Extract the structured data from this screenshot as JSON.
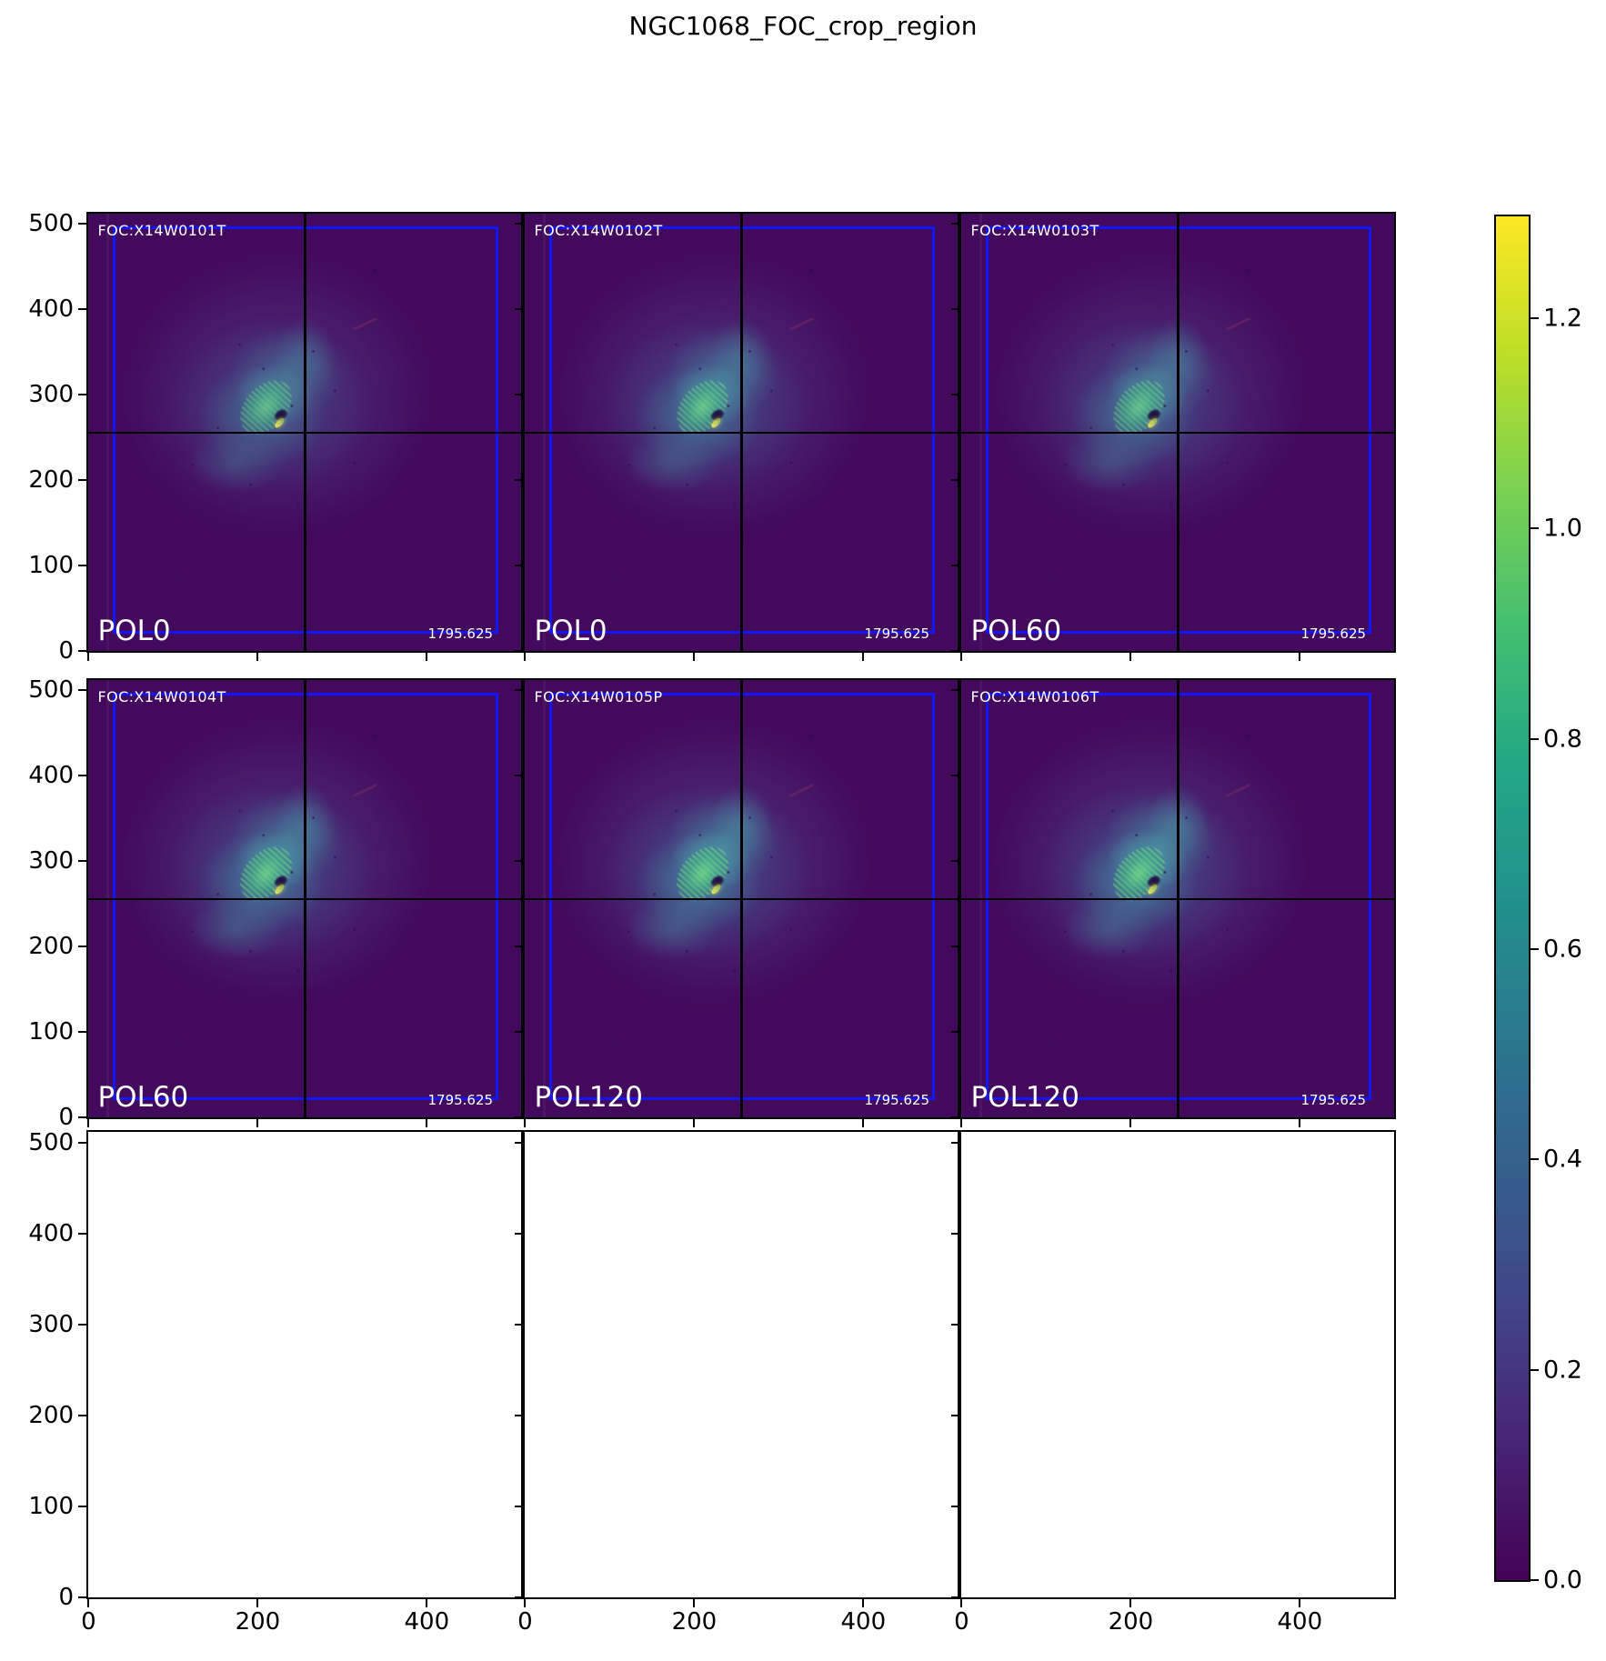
{
  "title": "NGC1068_FOC_crop_region",
  "axes": {
    "data_min": -0.5,
    "data_max": 511.5,
    "x_ticks": [
      0,
      200,
      400
    ],
    "y_ticks": [
      0,
      100,
      200,
      300,
      400,
      500
    ]
  },
  "panels": [
    {
      "foc": "FOC:X14W0101T",
      "pol": "POL0",
      "exposure": "1795.625",
      "empty": false
    },
    {
      "foc": "FOC:X14W0102T",
      "pol": "POL0",
      "exposure": "1795.625",
      "empty": false
    },
    {
      "foc": "FOC:X14W0103T",
      "pol": "POL60",
      "exposure": "1795.625",
      "empty": false
    },
    {
      "foc": "FOC:X14W0104T",
      "pol": "POL60",
      "exposure": "1795.625",
      "empty": false
    },
    {
      "foc": "FOC:X14W0105P",
      "pol": "POL120",
      "exposure": "1795.625",
      "empty": false
    },
    {
      "foc": "FOC:X14W0106T",
      "pol": "POL120",
      "exposure": "1795.625",
      "empty": false
    },
    {
      "empty": true
    },
    {
      "empty": true
    },
    {
      "empty": true
    }
  ],
  "colorbar": {
    "vmin": 0.0,
    "vmax": 1.297,
    "ticks": [
      "0.0",
      "0.2",
      "0.4",
      "0.6",
      "0.8",
      "1.0",
      "1.2"
    ],
    "tick_values": [
      0.0,
      0.2,
      0.4,
      0.6,
      0.8,
      1.0,
      1.2
    ],
    "gradient": [
      "#440154",
      "#482475",
      "#414487",
      "#355f8d",
      "#2a788e",
      "#21918c",
      "#22a884",
      "#44bf70",
      "#7ad151",
      "#bddf26",
      "#fde725"
    ]
  },
  "colors": {
    "image_background": "#43095c",
    "crop_box_blue": "#1316fb",
    "crosshair": "#000000",
    "halo_teal": "#2d6e8e",
    "core_green": "#4fc878",
    "core_speck_yellow": "#e8e44c",
    "label_text": "#ffffff"
  },
  "chart_data": {
    "type": "heatmap",
    "title": "NGC1068_FOC_crop_region",
    "grid": {
      "rows": 3,
      "cols": 3
    },
    "colormap": "viridis",
    "x_range": [
      -0.5,
      511.5
    ],
    "y_range": [
      -0.5,
      511.5
    ],
    "x_ticks": [
      0,
      200,
      400
    ],
    "y_ticks": [
      0,
      100,
      200,
      300,
      400,
      500
    ],
    "colorbar": {
      "range": [
        0.0,
        1.3
      ],
      "ticks": [
        0.0,
        0.2,
        0.4,
        0.6,
        0.8,
        1.0,
        1.2
      ],
      "position": "right"
    },
    "subplots": [
      {
        "row": 1,
        "col": 1,
        "dataset": "FOC:X14W0101T",
        "polarizer": "POL0",
        "exposure_s": 1795.625,
        "content": "NGC1068 galaxy image"
      },
      {
        "row": 1,
        "col": 2,
        "dataset": "FOC:X14W0102T",
        "polarizer": "POL0",
        "exposure_s": 1795.625,
        "content": "NGC1068 galaxy image"
      },
      {
        "row": 1,
        "col": 3,
        "dataset": "FOC:X14W0103T",
        "polarizer": "POL60",
        "exposure_s": 1795.625,
        "content": "NGC1068 galaxy image"
      },
      {
        "row": 2,
        "col": 1,
        "dataset": "FOC:X14W0104T",
        "polarizer": "POL60",
        "exposure_s": 1795.625,
        "content": "NGC1068 galaxy image"
      },
      {
        "row": 2,
        "col": 2,
        "dataset": "FOC:X14W0105P",
        "polarizer": "POL120",
        "exposure_s": 1795.625,
        "content": "NGC1068 galaxy image"
      },
      {
        "row": 2,
        "col": 3,
        "dataset": "FOC:X14W0106T",
        "polarizer": "POL120",
        "exposure_s": 1795.625,
        "content": "NGC1068 galaxy image"
      },
      {
        "row": 3,
        "col": 1,
        "content": "empty axes"
      },
      {
        "row": 3,
        "col": 2,
        "content": "empty axes"
      },
      {
        "row": 3,
        "col": 3,
        "content": "empty axes"
      }
    ],
    "annotations": {
      "crosshair_data_xy": [
        255.5,
        255.5
      ],
      "crop_box_data_region": {
        "x": [
          28,
          483
        ],
        "y": [
          20,
          496
        ]
      }
    }
  }
}
